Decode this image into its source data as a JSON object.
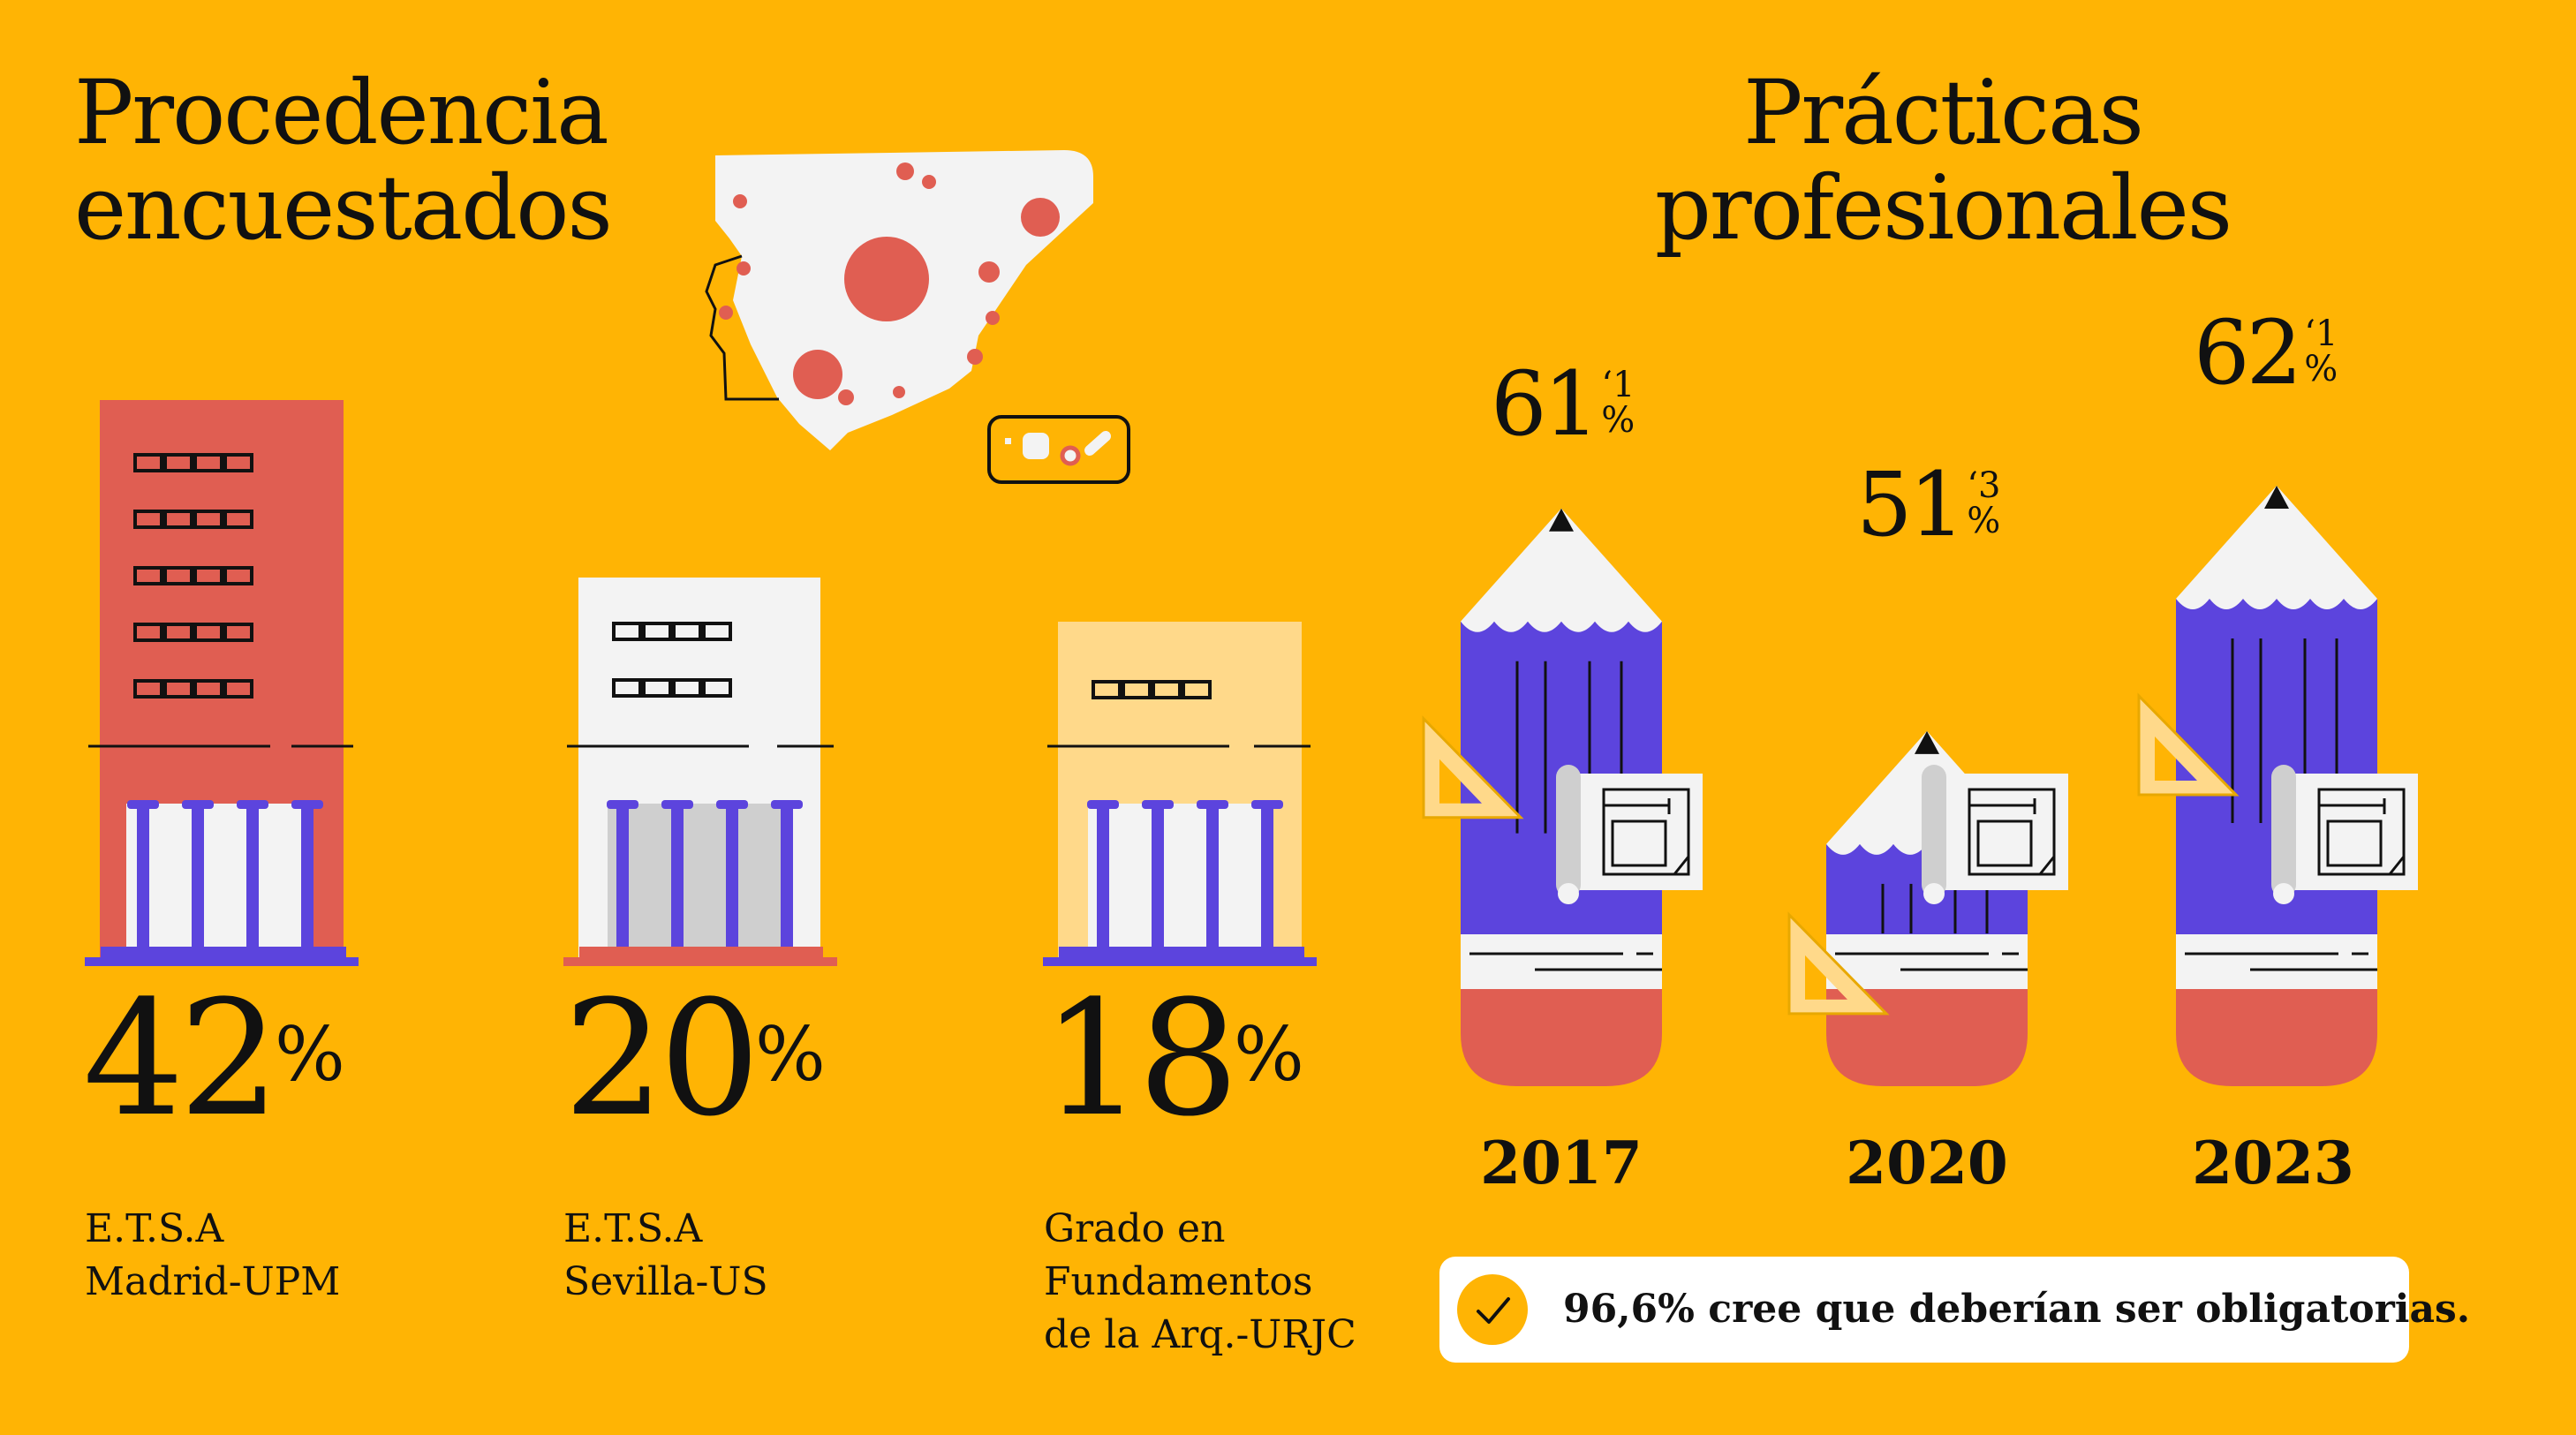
{
  "colors": {
    "background": "#FFB404",
    "red": "#E05E52",
    "purple": "#5C44DD",
    "white": "#F3F3F3",
    "cream": "#FFD98A",
    "ink": "#111111"
  },
  "left_title": [
    "Procedencia",
    "encuestados"
  ],
  "right_title": [
    "Prácticas",
    "profesionales"
  ],
  "chart_data": [
    {
      "type": "bar",
      "title": "Procedencia encuestados",
      "categories": [
        "E.T.S.A Madrid-UPM",
        "E.T.S.A Sevilla-US",
        "Grado en Fundamentos de la Arq.-URJC"
      ],
      "values": [
        42,
        20,
        18
      ],
      "value_labels": [
        "42",
        "20",
        "18"
      ],
      "unit": "%",
      "category_lines": [
        [
          "E.T.S.A",
          "Madrid-UPM"
        ],
        [
          "E.T.S.A",
          "Sevilla-US"
        ],
        [
          "Grado en",
          "Fundamentos",
          "de la Arq.-URJC"
        ]
      ]
    },
    {
      "type": "bar",
      "title": "Prácticas profesionales",
      "categories": [
        "2017",
        "2020",
        "2023"
      ],
      "values": [
        61.1,
        51.3,
        62.1
      ],
      "value_labels": [
        {
          "int": "61",
          "dec": "‘1",
          "unit": "%"
        },
        {
          "int": "51",
          "dec": "‘3",
          "unit": "%"
        },
        {
          "int": "62",
          "dec": "‘1",
          "unit": "%"
        }
      ]
    }
  ],
  "callout": {
    "icon": "check-icon",
    "text": "96,6% cree que deberían ser obligatorias."
  }
}
